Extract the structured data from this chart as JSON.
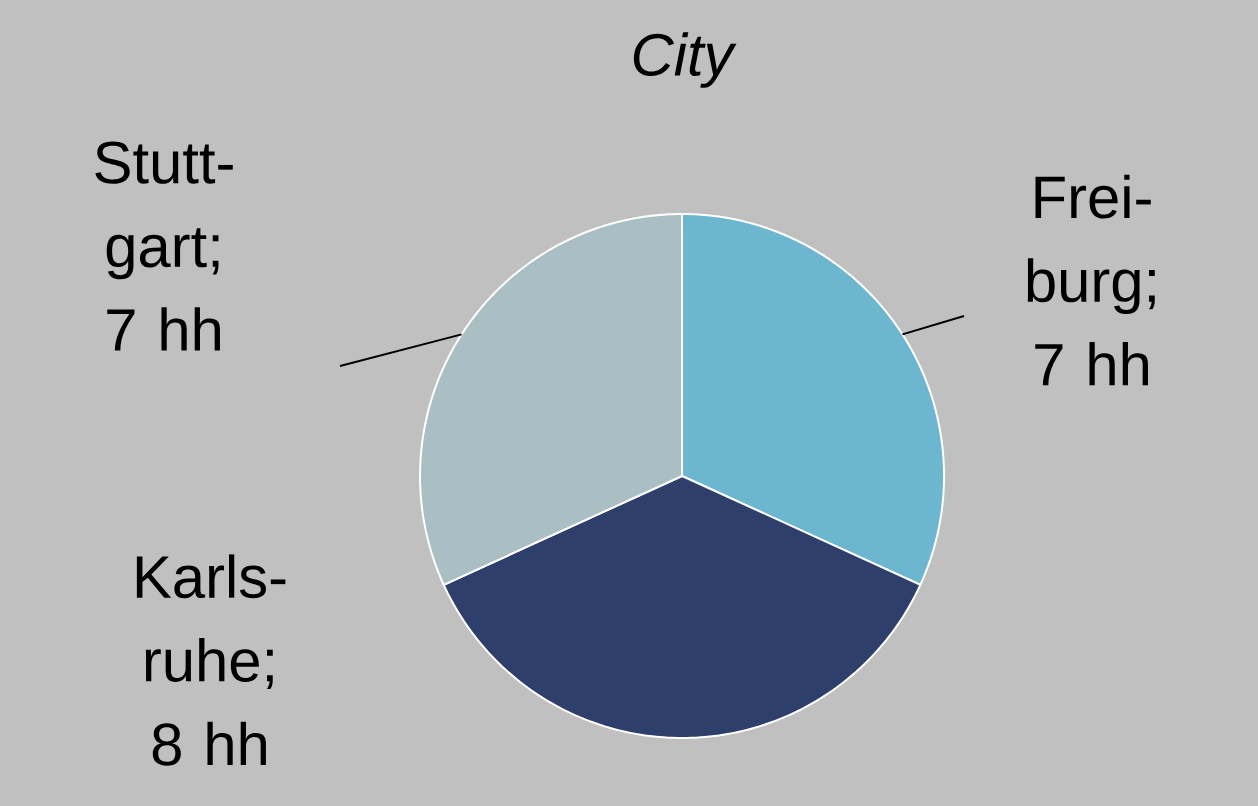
{
  "chart_data": {
    "type": "pie",
    "title": "City",
    "categories": [
      "Frei-burg; 7 hh",
      "Karls-ruhe; 8 hh",
      "Stutt-gart; 7 hh"
    ],
    "values": [
      7,
      8,
      7
    ],
    "colors": [
      "#6cb6d0",
      "#2e3f6b",
      "#a9bfc3"
    ]
  }
}
